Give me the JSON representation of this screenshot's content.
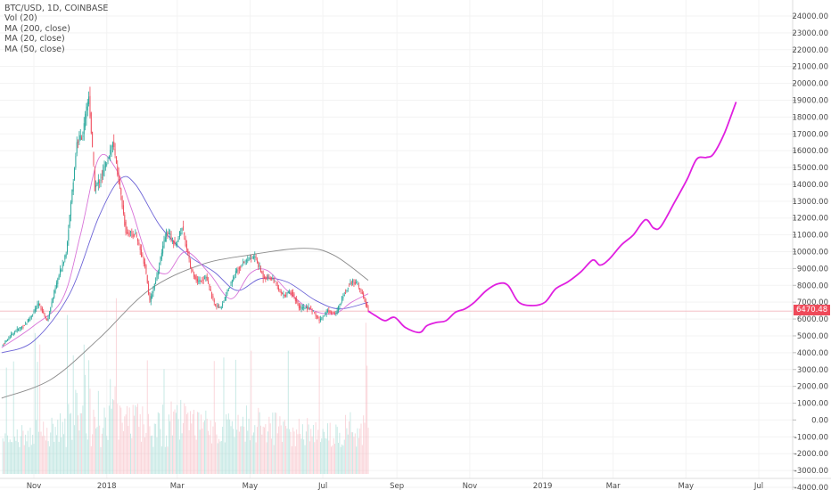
{
  "legend": {
    "symbol": "BTC/USD, 1D, COINBASE",
    "indicators": [
      "Vol (20)",
      "MA (200, close)",
      "MA (20, close)",
      "MA (50, close)"
    ]
  },
  "current_price_label": "6470.48",
  "colors": {
    "up": "#26a69a",
    "down": "#ef4a5a",
    "forecast": "#e020e0",
    "ma20": "#d873d8",
    "ma50": "#6c63d6",
    "ma200": "#8c8c8c",
    "price_line": "#f3b6bd"
  },
  "chart_data": {
    "type": "line",
    "x_tick_labels": [
      "Nov",
      "2018",
      "Mar",
      "May",
      "Jul",
      "Sep",
      "Nov",
      "2019",
      "Mar",
      "May",
      "Jul"
    ],
    "y_tick_labels": [
      "24000.00",
      "23000.00",
      "22000.00",
      "21000.00",
      "20000.00",
      "19000.00",
      "18000.00",
      "17000.00",
      "16000.00",
      "15000.00",
      "14000.00",
      "13000.00",
      "12000.00",
      "11000.00",
      "10000.00",
      "9000.00",
      "8000.00",
      "7000.00",
      "6000.00",
      "5000.00",
      "4000.00",
      "3000.00",
      "2000.00",
      "1000.00",
      "0.00",
      "-1000.00",
      "-2000.00",
      "-3000.00",
      "-4000.00"
    ],
    "ylim": [
      -4000,
      24000
    ],
    "current_price": 6470.48,
    "price_closes": [
      [
        "2017-10-05",
        4400
      ],
      [
        "2017-10-15",
        5200
      ],
      [
        "2017-10-25",
        5700
      ],
      [
        "2017-11-05",
        6900
      ],
      [
        "2017-11-12",
        5900
      ],
      [
        "2017-11-20",
        8100
      ],
      [
        "2017-11-28",
        10000
      ],
      [
        "2017-12-07",
        16500
      ],
      [
        "2017-12-12",
        17000
      ],
      [
        "2017-12-17",
        19300
      ],
      [
        "2017-12-22",
        13800
      ],
      [
        "2017-12-28",
        14500
      ],
      [
        "2018-01-06",
        16500
      ],
      [
        "2018-01-12",
        13800
      ],
      [
        "2018-01-17",
        11200
      ],
      [
        "2018-01-25",
        11000
      ],
      [
        "2018-02-02",
        9200
      ],
      [
        "2018-02-06",
        7000
      ],
      [
        "2018-02-12",
        8600
      ],
      [
        "2018-02-20",
        11200
      ],
      [
        "2018-02-28",
        10400
      ],
      [
        "2018-03-05",
        11500
      ],
      [
        "2018-03-12",
        9100
      ],
      [
        "2018-03-18",
        8200
      ],
      [
        "2018-03-25",
        8500
      ],
      [
        "2018-04-01",
        6900
      ],
      [
        "2018-04-06",
        6600
      ],
      [
        "2018-04-14",
        8000
      ],
      [
        "2018-04-20",
        8900
      ],
      [
        "2018-04-25",
        9400
      ],
      [
        "2018-05-05",
        9700
      ],
      [
        "2018-05-12",
        8500
      ],
      [
        "2018-05-20",
        8400
      ],
      [
        "2018-05-28",
        7400
      ],
      [
        "2018-06-05",
        7600
      ],
      [
        "2018-06-12",
        6600
      ],
      [
        "2018-06-20",
        6700
      ],
      [
        "2018-06-28",
        5900
      ],
      [
        "2018-07-05",
        6500
      ],
      [
        "2018-07-12",
        6300
      ],
      [
        "2018-07-18",
        7400
      ],
      [
        "2018-07-24",
        8200
      ],
      [
        "2018-07-28",
        8200
      ],
      [
        "2018-08-03",
        7500
      ],
      [
        "2018-08-08",
        6470
      ]
    ],
    "forecast": [
      [
        "2018-08-08",
        6470
      ],
      [
        "2018-08-14",
        6200
      ],
      [
        "2018-08-22",
        5900
      ],
      [
        "2018-08-30",
        6100
      ],
      [
        "2018-09-08",
        5500
      ],
      [
        "2018-09-20",
        5200
      ],
      [
        "2018-09-26",
        5600
      ],
      [
        "2018-10-04",
        5800
      ],
      [
        "2018-10-12",
        5900
      ],
      [
        "2018-10-20",
        6400
      ],
      [
        "2018-10-28",
        6600
      ],
      [
        "2018-11-05",
        7000
      ],
      [
        "2018-11-15",
        7700
      ],
      [
        "2018-11-25",
        8100
      ],
      [
        "2018-12-03",
        8000
      ],
      [
        "2018-12-12",
        7000
      ],
      [
        "2018-12-24",
        6800
      ],
      [
        "2019-01-03",
        7000
      ],
      [
        "2019-01-12",
        7800
      ],
      [
        "2019-01-22",
        8200
      ],
      [
        "2019-02-02",
        8800
      ],
      [
        "2019-02-12",
        9500
      ],
      [
        "2019-02-18",
        9200
      ],
      [
        "2019-02-25",
        9500
      ],
      [
        "2019-03-08",
        10400
      ],
      [
        "2019-03-18",
        11000
      ],
      [
        "2019-03-28",
        11900
      ],
      [
        "2019-04-04",
        11400
      ],
      [
        "2019-04-10",
        11500
      ],
      [
        "2019-04-22",
        13000
      ],
      [
        "2019-05-02",
        14300
      ],
      [
        "2019-05-10",
        15500
      ],
      [
        "2019-05-18",
        15600
      ],
      [
        "2019-05-24",
        15800
      ],
      [
        "2019-06-02",
        17000
      ],
      [
        "2019-06-12",
        18900
      ]
    ],
    "ma20": [
      [
        "2017-10-05",
        4300
      ],
      [
        "2017-11-01",
        5600
      ],
      [
        "2017-11-25",
        7200
      ],
      [
        "2017-12-10",
        11000
      ],
      [
        "2017-12-25",
        15500
      ],
      [
        "2018-01-08",
        15000
      ],
      [
        "2018-01-22",
        12500
      ],
      [
        "2018-02-05",
        9500
      ],
      [
        "2018-02-20",
        8700
      ],
      [
        "2018-03-08",
        10000
      ],
      [
        "2018-03-28",
        8700
      ],
      [
        "2018-04-15",
        7200
      ],
      [
        "2018-05-01",
        8700
      ],
      [
        "2018-05-15",
        8900
      ],
      [
        "2018-06-01",
        7700
      ],
      [
        "2018-06-20",
        6600
      ],
      [
        "2018-07-10",
        6300
      ],
      [
        "2018-07-25",
        7000
      ],
      [
        "2018-08-08",
        7500
      ]
    ],
    "ma50": [
      [
        "2017-10-05",
        4000
      ],
      [
        "2017-11-01",
        4700
      ],
      [
        "2017-12-01",
        7500
      ],
      [
        "2017-12-25",
        12000
      ],
      [
        "2018-01-12",
        14300
      ],
      [
        "2018-01-25",
        14000
      ],
      [
        "2018-02-15",
        11500
      ],
      [
        "2018-03-10",
        9800
      ],
      [
        "2018-04-01",
        8800
      ],
      [
        "2018-04-20",
        7700
      ],
      [
        "2018-05-10",
        8400
      ],
      [
        "2018-06-01",
        8200
      ],
      [
        "2018-06-25",
        7100
      ],
      [
        "2018-07-15",
        6600
      ],
      [
        "2018-08-08",
        7000
      ]
    ],
    "ma200": [
      [
        "2017-10-05",
        1300
      ],
      [
        "2017-11-15",
        2400
      ],
      [
        "2017-12-25",
        4800
      ],
      [
        "2018-02-05",
        7700
      ],
      [
        "2018-03-20",
        9200
      ],
      [
        "2018-04-30",
        9800
      ],
      [
        "2018-06-15",
        10200
      ],
      [
        "2018-07-10",
        9800
      ],
      [
        "2018-08-08",
        8300
      ]
    ]
  }
}
